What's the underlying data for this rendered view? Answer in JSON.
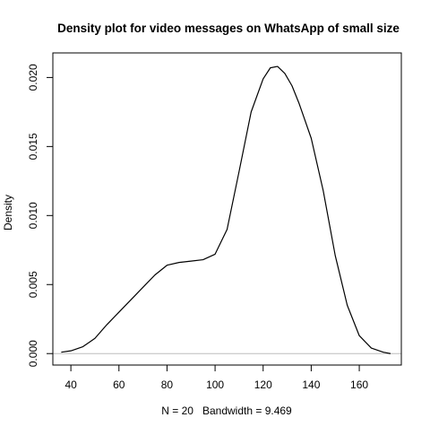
{
  "chart_data": {
    "type": "line",
    "title": "Density plot for video messages on WhatsApp of small size",
    "xlabel": "N = 20   Bandwidth = 9.469",
    "ylabel": "Density",
    "xlim": [
      32.5,
      177.5
    ],
    "ylim": [
      -0.00083,
      0.02178
    ],
    "x_ticks": [
      40,
      60,
      80,
      100,
      120,
      140,
      160
    ],
    "x_tick_labels": [
      "40",
      "60",
      "80",
      "100",
      "120",
      "140",
      "160"
    ],
    "y_ticks": [
      0.0,
      0.005,
      0.01,
      0.015,
      0.02
    ],
    "y_tick_labels": [
      "0.000",
      "0.005",
      "0.010",
      "0.015",
      "0.020"
    ],
    "baseline": {
      "y": 0,
      "x_range": [
        32.5,
        177.5
      ],
      "color": "#bebebe"
    },
    "grid": false,
    "legend": "none",
    "series": [
      {
        "color": "#000000",
        "x": [
          36,
          40,
          45,
          50,
          55,
          60,
          65,
          70,
          75,
          80,
          85,
          90,
          95,
          100,
          105,
          110,
          115,
          120,
          123,
          126,
          129,
          132,
          135,
          140,
          145,
          150,
          155,
          160,
          165,
          170,
          173
        ],
        "y": [
          0.0001,
          0.0002,
          0.0005,
          0.0011,
          0.0021,
          0.003,
          0.0039,
          0.0048,
          0.0057,
          0.0064,
          0.0066,
          0.0067,
          0.0068,
          0.0072,
          0.009,
          0.0132,
          0.0175,
          0.0199,
          0.0207,
          0.0208,
          0.0203,
          0.0194,
          0.0181,
          0.0156,
          0.0118,
          0.0071,
          0.0035,
          0.0013,
          0.0004,
          0.0001,
          0.0
        ]
      }
    ]
  }
}
